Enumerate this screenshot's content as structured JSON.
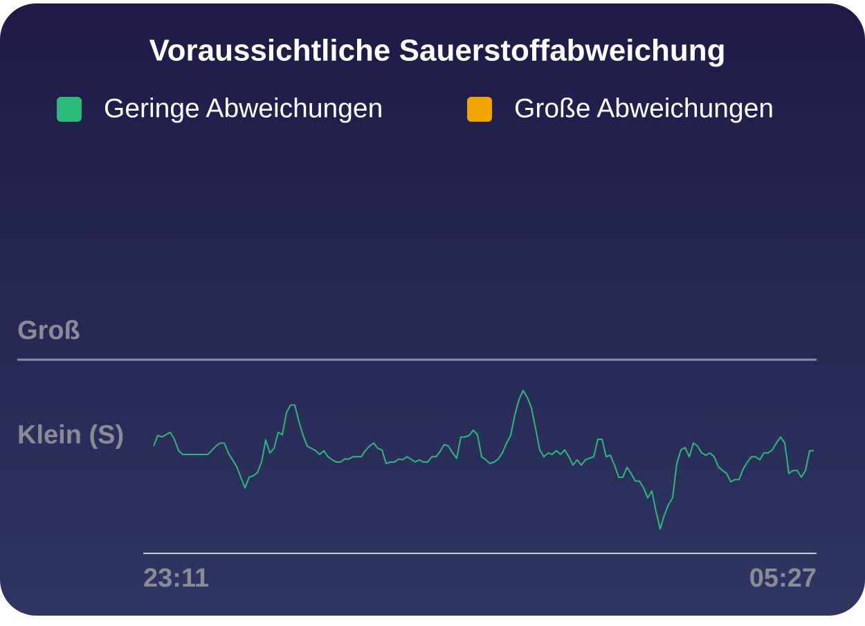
{
  "chart_data": {
    "type": "line",
    "title": "Voraussichtliche Sauerstoffabweichung",
    "categories": [
      "23:11",
      null,
      null,
      null,
      null,
      null,
      null,
      null,
      null,
      null,
      null,
      null,
      null,
      null,
      null,
      null,
      null,
      null,
      null,
      null,
      null,
      null,
      null,
      null,
      null,
      null,
      null,
      null,
      null,
      null,
      null,
      null,
      null,
      null,
      null,
      null,
      null,
      null,
      null,
      null,
      null,
      null,
      null,
      null,
      null,
      null,
      null,
      null,
      null,
      null,
      null,
      null,
      null,
      null,
      null,
      null,
      null,
      null,
      null,
      null,
      null,
      null,
      null,
      null,
      null,
      null,
      null,
      null,
      null,
      null,
      null,
      null,
      null,
      null,
      null,
      null,
      null,
      null,
      null,
      null,
      null,
      null,
      null,
      null,
      null,
      null,
      null,
      null,
      null,
      null,
      null,
      null,
      null,
      null,
      null,
      null,
      null,
      null,
      null,
      null,
      null,
      null,
      null,
      null,
      null,
      null,
      null,
      null,
      null,
      null,
      null,
      null,
      null,
      null,
      null,
      null,
      null,
      null,
      null,
      null,
      null,
      null,
      null,
      null,
      null,
      null,
      null,
      null,
      null,
      null,
      null,
      null,
      null,
      null,
      null,
      null,
      null,
      null,
      null,
      null,
      null,
      null,
      null,
      null,
      null,
      null,
      null,
      null,
      null,
      null,
      null,
      null,
      null,
      null,
      null,
      null,
      null,
      null,
      null,
      "05:27"
    ],
    "series": [
      {
        "name": "Geringe Abweichungen",
        "color": "#2dba7a",
        "values": [
          0.91,
          1.05,
          1.03,
          1.06,
          1.09,
          1.0,
          0.85,
          0.8,
          0.8,
          0.8,
          0.8,
          0.8,
          0.8,
          0.8,
          0.85,
          0.91,
          0.95,
          0.95,
          0.82,
          0.73,
          0.64,
          0.5,
          0.36,
          0.5,
          0.52,
          0.56,
          0.7,
          0.99,
          0.82,
          0.88,
          1.09,
          1.06,
          1.35,
          1.45,
          1.45,
          1.23,
          1.05,
          0.91,
          0.88,
          0.85,
          0.8,
          0.85,
          0.77,
          0.73,
          0.7,
          0.7,
          0.74,
          0.74,
          0.77,
          0.77,
          0.77,
          0.85,
          0.91,
          0.95,
          0.88,
          0.86,
          0.68,
          0.7,
          0.7,
          0.74,
          0.73,
          0.77,
          0.74,
          0.7,
          0.73,
          0.7,
          0.7,
          0.77,
          0.77,
          0.84,
          0.93,
          0.91,
          0.82,
          0.75,
          1.03,
          1.03,
          1.05,
          1.12,
          1.06,
          0.77,
          0.73,
          0.68,
          0.7,
          0.74,
          0.82,
          0.95,
          1.05,
          1.32,
          1.52,
          1.64,
          1.55,
          1.41,
          1.14,
          0.86,
          0.77,
          0.82,
          0.8,
          0.85,
          0.8,
          0.86,
          0.77,
          0.66,
          0.73,
          0.66,
          0.73,
          0.75,
          0.77,
          1.0,
          1.0,
          0.77,
          0.79,
          0.66,
          0.5,
          0.5,
          0.63,
          0.55,
          0.45,
          0.45,
          0.36,
          0.23,
          0.32,
          0.05,
          -0.18,
          0.0,
          0.14,
          0.23,
          0.68,
          0.86,
          0.89,
          0.77,
          0.95,
          0.91,
          0.82,
          0.79,
          0.82,
          0.77,
          0.64,
          0.59,
          0.55,
          0.44,
          0.47,
          0.47,
          0.61,
          0.7,
          0.77,
          0.77,
          0.73,
          0.82,
          0.82,
          0.86,
          0.95,
          1.03,
          0.95,
          0.55,
          0.59,
          0.59,
          0.5,
          0.59,
          0.85,
          0.85
        ]
      },
      {
        "name": "Große Abweichungen",
        "color": "#f2a400",
        "values": [
          null,
          null,
          null,
          null,
          null,
          null,
          null,
          null,
          null,
          null,
          null,
          null,
          null,
          null,
          null,
          null,
          null,
          null,
          null,
          null,
          null,
          null,
          null,
          null,
          null,
          null,
          null,
          null,
          null,
          null,
          null,
          null,
          null,
          null,
          null,
          null,
          null,
          null,
          null,
          null,
          null,
          null,
          null,
          null,
          null,
          null,
          null,
          null,
          null,
          null,
          null,
          null,
          null,
          null,
          null,
          null,
          null,
          null,
          null,
          null,
          null,
          null,
          null,
          null,
          null,
          null,
          null,
          null,
          null,
          null,
          null,
          null,
          null,
          null,
          null,
          null,
          null,
          null,
          null,
          null,
          null,
          null,
          null,
          null,
          null,
          null,
          null,
          null,
          null,
          null,
          null,
          null,
          null,
          null,
          null,
          null,
          null,
          null,
          null,
          null,
          null,
          null,
          null,
          null,
          null,
          null,
          null,
          null,
          null,
          null,
          null,
          null,
          null,
          null,
          null,
          null,
          null,
          null,
          null,
          null,
          null,
          null,
          null,
          null,
          null,
          null,
          null,
          null,
          null,
          null,
          null,
          null,
          null,
          null,
          null,
          null,
          null,
          null,
          null,
          null,
          null,
          null,
          null,
          null,
          null,
          null,
          null,
          null,
          null,
          null,
          null,
          null,
          null,
          null,
          null,
          null,
          null,
          null,
          null,
          null
        ]
      }
    ],
    "ylim": [
      -0.5,
      2.5
    ],
    "yticks": [
      {
        "value": 1,
        "label": "Klein (S)"
      },
      {
        "value": 2,
        "label": "Groß"
      }
    ]
  }
}
